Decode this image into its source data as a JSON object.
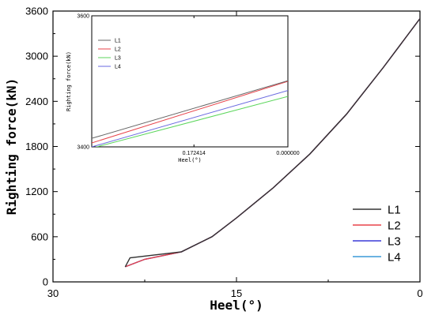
{
  "chart_data": [
    {
      "type": "line",
      "xlabel": "Heel(°)",
      "ylabel": "Righting force(kN)",
      "x_reversed": true,
      "xlim": [
        30,
        0
      ],
      "ylim": [
        0,
        3600
      ],
      "xticks": [
        30,
        15,
        0
      ],
      "yticks": [
        0,
        600,
        1200,
        1800,
        2400,
        3000,
        3600
      ],
      "legend_position": "bottom-right",
      "series": [
        {
          "name": "L1",
          "color": "#333333",
          "x": [
            24.1,
            23.7,
            19.5,
            17.0,
            15.0,
            12.0,
            9.0,
            6.0,
            3.0,
            0.0
          ],
          "y": [
            200,
            320,
            400,
            600,
            850,
            1250,
            1700,
            2230,
            2850,
            3500
          ]
        },
        {
          "name": "L2",
          "color": "#e8434a",
          "x": [
            24.1,
            22.5,
            19.5,
            17.0,
            15.0,
            12.0,
            9.0,
            6.0,
            3.0,
            0.0
          ],
          "y": [
            200,
            300,
            400,
            600,
            850,
            1250,
            1700,
            2230,
            2850,
            3500
          ]
        },
        {
          "name": "L3",
          "color": "#3a3ad9",
          "x": [
            24.1,
            22.5,
            19.5,
            17.0,
            15.0,
            12.0,
            9.0,
            6.0,
            3.0,
            0.0
          ],
          "y": [
            200,
            300,
            400,
            600,
            850,
            1250,
            1700,
            2230,
            2850,
            3500
          ]
        },
        {
          "name": "L4",
          "color": "#3b9ad9",
          "x": [
            24.1,
            22.5,
            19.5,
            17.0,
            15.0,
            12.0,
            9.0,
            6.0,
            3.0,
            0.0
          ],
          "y": [
            200,
            300,
            400,
            600,
            850,
            1250,
            1700,
            2230,
            2850,
            3500
          ]
        }
      ]
    },
    {
      "type": "line",
      "xlabel": "Heel(°)",
      "ylabel": "Righting force(kN)",
      "x_reversed": true,
      "xlim": [
        0.36,
        0.0
      ],
      "ylim": [
        3400,
        3600
      ],
      "xticks": [
        0.172414,
        0.0
      ],
      "xtick_labels": [
        "0.172414",
        "0.000000"
      ],
      "yticks": [
        3400,
        3600
      ],
      "legend_position": "top-left",
      "series": [
        {
          "name": "L1",
          "color": "#666666",
          "x": [
            0.36,
            0.0
          ],
          "y": [
            3413,
            3501
          ]
        },
        {
          "name": "L2",
          "color": "#e8434a",
          "x": [
            0.36,
            0.0
          ],
          "y": [
            3406,
            3500
          ]
        },
        {
          "name": "L3",
          "color": "#5cd65c",
          "x": [
            0.36,
            0.0
          ],
          "y": [
            3398,
            3477
          ]
        },
        {
          "name": "L4",
          "color": "#6a6ae0",
          "x": [
            0.36,
            0.0
          ],
          "y": [
            3400,
            3486
          ]
        }
      ]
    }
  ]
}
